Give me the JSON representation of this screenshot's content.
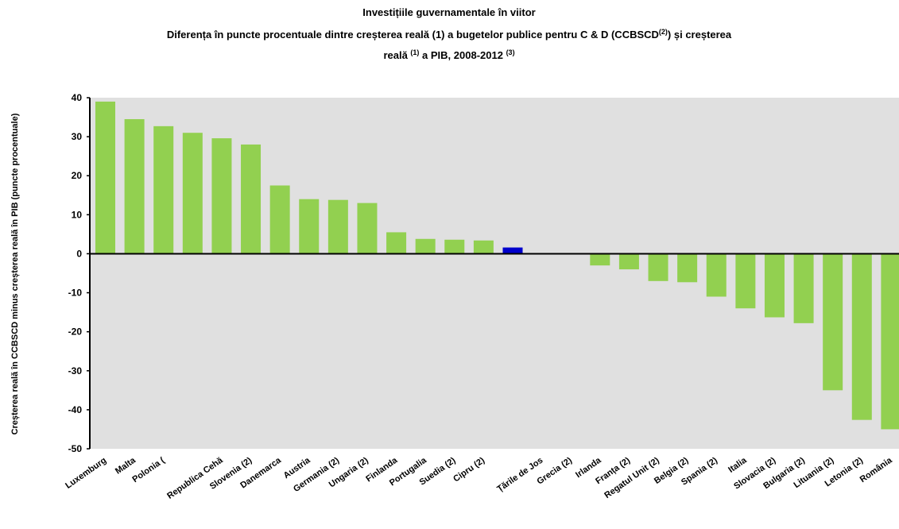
{
  "chart_data": {
    "type": "bar",
    "title": "Investițiile guvernamentale în viitor",
    "subtitle_line1": [
      "Diferența în puncte procentuale dintre creșterea reală (1) a bugetelor publice pentru C & D (CCBSCD",
      "(2)",
      ") și creșterea"
    ],
    "subtitle_line2": [
      "reală ",
      "(1)",
      " a PIB, 2008-2012 ",
      "(3)"
    ],
    "y_label": "Creșterea reală în CCBSCD minus creșterea reală în PIB (puncte procentuale)",
    "categories": [
      "Luxemburg",
      "Malta",
      "Polonia (",
      null,
      "Republica Cehă",
      "Slovenia (2)",
      "Danemarca",
      "Austria",
      "Germania (2)",
      "Ungaria (2)",
      "Finlanda",
      "Portugalia",
      "Suedia (2)",
      "Cipru (2)",
      null,
      "Țările de Jos",
      "Grecia (2)",
      "Irlanda",
      "Franța (2)",
      "Regatul Unit (2)",
      "Belgia (2)",
      "Spania (2)",
      "Italia",
      "Slovacia (2)",
      "Bulgaria (2)",
      "Lituania (2)",
      "Letonia (2)",
      "România"
    ],
    "values": [
      39,
      34.5,
      32.7,
      31,
      29.6,
      28,
      17.5,
      14,
      13.8,
      13,
      5.5,
      3.8,
      3.6,
      3.4,
      1.6,
      0,
      0,
      -3,
      -4,
      -7,
      -7.3,
      -11,
      -14,
      -16.3,
      -17.8,
      -35,
      -42.6,
      -45
    ],
    "colors": [
      "#92d050",
      "#92d050",
      "#92d050",
      "#92d050",
      "#92d050",
      "#92d050",
      "#92d050",
      "#92d050",
      "#92d050",
      "#92d050",
      "#92d050",
      "#92d050",
      "#92d050",
      "#92d050",
      "#0000cc",
      "#92d050",
      "#92d050",
      "#92d050",
      "#92d050",
      "#92d050",
      "#92d050",
      "#92d050",
      "#92d050",
      "#92d050",
      "#92d050",
      "#92d050",
      "#92d050",
      "#92d050"
    ],
    "ylim": [
      -50,
      40
    ],
    "yticks": [
      -50,
      -40,
      -30,
      -20,
      -10,
      0,
      10,
      20,
      30,
      40
    ],
    "grid": false
  }
}
